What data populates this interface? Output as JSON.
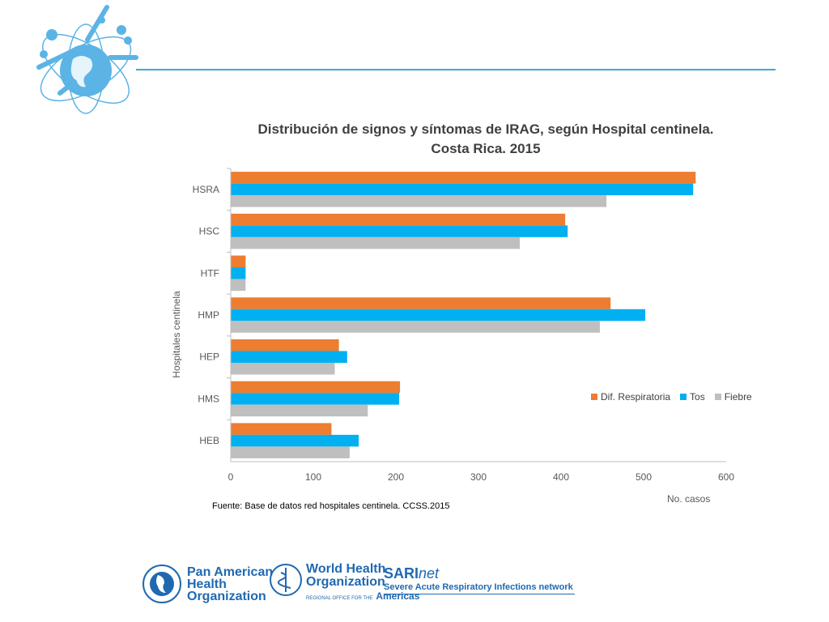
{
  "chart_data": {
    "type": "bar",
    "orientation": "horizontal",
    "title": "Distribución de signos y síntomas  de IRAG, según Hospital centinela.\nCosta Rica. 2015",
    "xlabel": "No. casos",
    "ylabel": "Hospitales centinela",
    "xlim": [
      0,
      600
    ],
    "xticks": [
      0,
      100,
      200,
      300,
      400,
      500,
      600
    ],
    "categories": [
      "HSRA",
      "HSC",
      "HTF",
      "HMP",
      "HEP",
      "HMS",
      "HEB"
    ],
    "series": [
      {
        "name": "Dif. Respiratoria",
        "color": "#ed7d31",
        "values": [
          563,
          405,
          18,
          460,
          131,
          205,
          122
        ]
      },
      {
        "name": "Tos",
        "color": "#00b0f0",
        "values": [
          560,
          408,
          18,
          502,
          141,
          204,
          155
        ]
      },
      {
        "name": "Fiebre",
        "color": "#bfbfbf",
        "values": [
          455,
          350,
          18,
          447,
          126,
          166,
          144
        ]
      }
    ],
    "legend_position": "right",
    "grid": false
  },
  "source_note": "Fuente: Base de datos red hospitales centinela. CCSS.2015",
  "footer": {
    "paho_line1": "Pan American",
    "paho_line2": "Health",
    "paho_line3": "Organization",
    "who_line1": "World Health",
    "who_line2": "Organization",
    "who_sub": "REGIONAL OFFICE FOR THE",
    "who_region": "Americas",
    "sari_brand": "SARI",
    "sari_brand_suffix": "net",
    "sari_tagline": "Severe Acute Respiratory Infections network"
  }
}
